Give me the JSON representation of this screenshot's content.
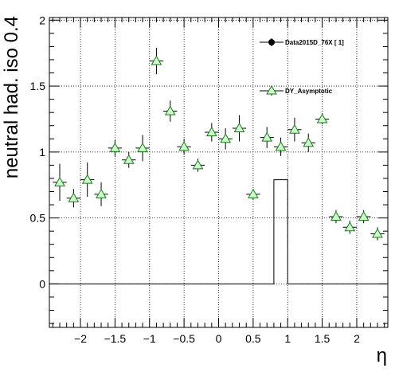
{
  "chart_data": {
    "type": "scatter",
    "title": "",
    "xlabel": "η",
    "ylabel": "neutral had. iso 0.4",
    "xlim": [
      -2.45,
      2.45
    ],
    "ylim": [
      -0.33,
      2.02
    ],
    "grid": true,
    "x_ticks": [
      -2,
      -1.5,
      -1,
      -0.5,
      0,
      0.5,
      1,
      1.5,
      2
    ],
    "x_tick_labels": [
      "−2",
      "−1.5",
      "−1",
      "−0.5",
      "0",
      "0.5",
      "1",
      "1.5",
      "2"
    ],
    "y_ticks": [
      0,
      0.5,
      1,
      1.5,
      2
    ],
    "y_tick_labels": [
      "0",
      "0.5",
      "1",
      "1.5",
      "2"
    ],
    "legend": {
      "placement": "top-right",
      "entries": [
        {
          "label": "Data2015D_76X [        1]",
          "marker": "circle",
          "color": "#000000"
        },
        {
          "label": "DY_Asymptotic",
          "marker": "triangle",
          "color": "#1a7a1a",
          "fill": "#ccffcc"
        }
      ]
    },
    "series": [
      {
        "name": "DY_Asymptotic",
        "type": "points",
        "marker": "triangle",
        "color": "#1a7a1a",
        "fill": "#ccffcc",
        "x_half_width": 0.1,
        "points": [
          {
            "x": -2.3,
            "y": 0.77,
            "err": 0.14
          },
          {
            "x": -2.1,
            "y": 0.65,
            "err": 0.07
          },
          {
            "x": -1.9,
            "y": 0.79,
            "err": 0.13
          },
          {
            "x": -1.7,
            "y": 0.68,
            "err": 0.09
          },
          {
            "x": -1.5,
            "y": 1.03,
            "err": 0.06
          },
          {
            "x": -1.3,
            "y": 0.94,
            "err": 0.06
          },
          {
            "x": -1.1,
            "y": 1.03,
            "err": 0.1
          },
          {
            "x": -0.9,
            "y": 1.69,
            "err": 0.1
          },
          {
            "x": -0.7,
            "y": 1.31,
            "err": 0.08
          },
          {
            "x": -0.5,
            "y": 1.04,
            "err": 0.06
          },
          {
            "x": -0.3,
            "y": 0.9,
            "err": 0.05
          },
          {
            "x": -0.1,
            "y": 1.15,
            "err": 0.07
          },
          {
            "x": 0.1,
            "y": 1.1,
            "err": 0.08
          },
          {
            "x": 0.3,
            "y": 1.18,
            "err": 0.1
          },
          {
            "x": 0.5,
            "y": 0.68,
            "err": 0.04
          },
          {
            "x": 0.7,
            "y": 1.11,
            "err": 0.08
          },
          {
            "x": 0.9,
            "y": 1.04,
            "err": 0.07
          },
          {
            "x": 1.1,
            "y": 1.17,
            "err": 0.09
          },
          {
            "x": 1.3,
            "y": 1.07,
            "err": 0.07
          },
          {
            "x": 1.5,
            "y": 1.25,
            "err": 0.04
          },
          {
            "x": 1.7,
            "y": 0.51,
            "err": 0.05
          },
          {
            "x": 1.9,
            "y": 0.43,
            "err": 0.05
          },
          {
            "x": 2.1,
            "y": 0.51,
            "err": 0.05
          },
          {
            "x": 2.3,
            "y": 0.38,
            "err": 0.05
          }
        ]
      },
      {
        "name": "Data2015D_76X [        1]",
        "type": "histogram",
        "color": "#000000",
        "bins": [
          {
            "x_low": -2.45,
            "x_high": 0.8,
            "y": 0
          },
          {
            "x_low": 0.8,
            "x_high": 1.0,
            "y": 0.79
          },
          {
            "x_low": 1.0,
            "x_high": 2.45,
            "y": 0
          }
        ]
      }
    ]
  }
}
